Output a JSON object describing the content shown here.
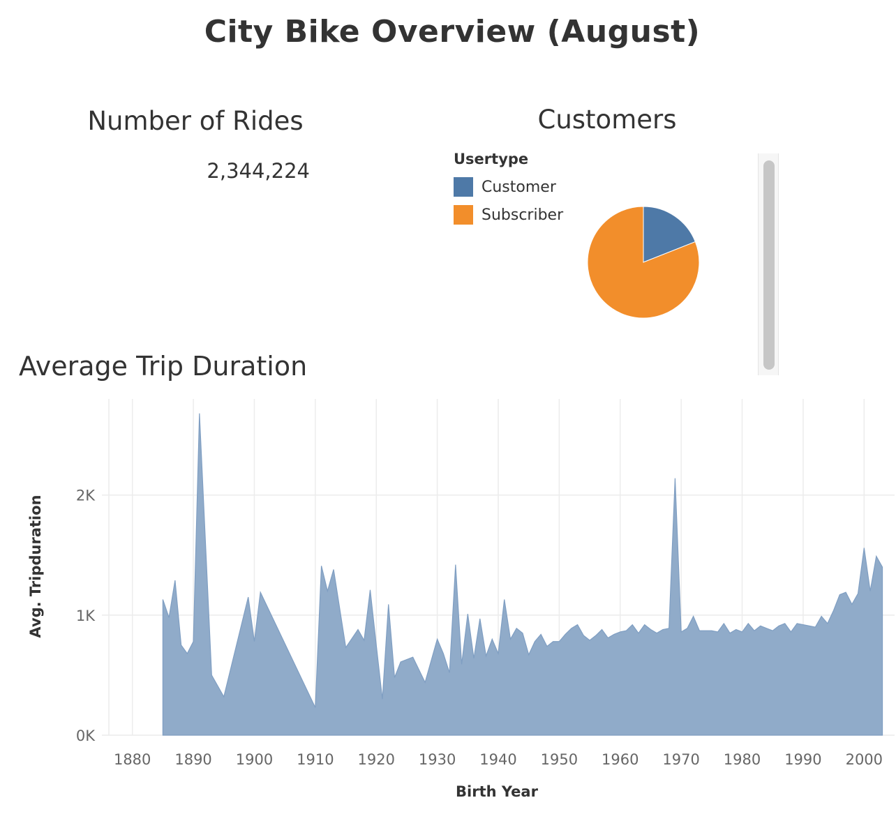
{
  "dashboard": {
    "title": "City Bike Overview (August)"
  },
  "rides": {
    "title": "Number of Rides",
    "value": "2,344,224"
  },
  "customers": {
    "title": "Customers",
    "legend_title": "Usertype",
    "legend": [
      {
        "label": "Customer",
        "color": "#4e79a7"
      },
      {
        "label": "Subscriber",
        "color": "#f28e2b"
      }
    ]
  },
  "trip": {
    "title": "Average Trip Duration"
  },
  "colors": {
    "customer": "#4e79a7",
    "subscriber": "#f28e2b",
    "area_fill": "#90abc9",
    "area_stroke": "#7f9ec2",
    "grid": "#ececec"
  },
  "chart_data": [
    {
      "type": "pie",
      "categories": [
        "Customer",
        "Subscriber"
      ],
      "values": [
        19,
        81
      ],
      "legend_title": "Usertype",
      "colors": [
        "#4e79a7",
        "#f28e2b"
      ]
    },
    {
      "type": "area",
      "xlabel": "Birth Year",
      "ylabel": "Avg. Tripduration",
      "xlim": [
        1875,
        2005
      ],
      "ylim": [
        0,
        2800
      ],
      "xticks": [
        1880,
        1890,
        1900,
        1910,
        1920,
        1930,
        1940,
        1950,
        1960,
        1970,
        1980,
        1990,
        2000
      ],
      "yticks": [
        0,
        1000,
        2000
      ],
      "ytick_labels": [
        "0K",
        "1K",
        "2K"
      ],
      "grid": true,
      "series": [
        {
          "x": [
            1885,
            1886,
            1887,
            1888,
            1889,
            1890,
            1891,
            1893,
            1895,
            1899,
            1900,
            1901,
            1910,
            1911,
            1912,
            1913,
            1915,
            1917,
            1918,
            1919,
            1920,
            1921,
            1922,
            1923,
            1924,
            1926,
            1928,
            1930,
            1931,
            1932,
            1933,
            1934,
            1935,
            1936,
            1937,
            1938,
            1939,
            1940,
            1941,
            1942,
            1943,
            1944,
            1945,
            1946,
            1947,
            1948,
            1949,
            1950,
            1951,
            1952,
            1953,
            1954,
            1955,
            1956,
            1957,
            1958,
            1959,
            1960,
            1961,
            1962,
            1963,
            1964,
            1965,
            1966,
            1967,
            1968,
            1969,
            1970,
            1971,
            1972,
            1973,
            1974,
            1975,
            1976,
            1977,
            1978,
            1979,
            1980,
            1981,
            1982,
            1983,
            1984,
            1985,
            1986,
            1987,
            1988,
            1989,
            1990,
            1991,
            1992,
            1993,
            1994,
            1995,
            1996,
            1997,
            1998,
            1999,
            2000,
            2001,
            2002,
            2003
          ],
          "y": [
            1130,
            980,
            1290,
            750,
            680,
            780,
            2680,
            500,
            320,
            1150,
            780,
            1190,
            230,
            1410,
            1200,
            1380,
            730,
            880,
            790,
            1210,
            750,
            300,
            1090,
            480,
            610,
            650,
            440,
            800,
            680,
            520,
            1420,
            590,
            1010,
            640,
            970,
            660,
            800,
            680,
            1130,
            800,
            890,
            850,
            670,
            780,
            840,
            740,
            780,
            780,
            840,
            890,
            920,
            830,
            790,
            830,
            880,
            810,
            840,
            860,
            870,
            920,
            850,
            920,
            880,
            850,
            880,
            890,
            2140,
            860,
            890,
            990,
            870,
            870,
            870,
            860,
            930,
            850,
            880,
            860,
            930,
            870,
            910,
            890,
            870,
            910,
            930,
            860,
            930,
            920,
            910,
            900,
            990,
            930,
            1040,
            1170,
            1190,
            1090,
            1180,
            1560,
            1200,
            1490,
            1400
          ]
        }
      ]
    }
  ]
}
